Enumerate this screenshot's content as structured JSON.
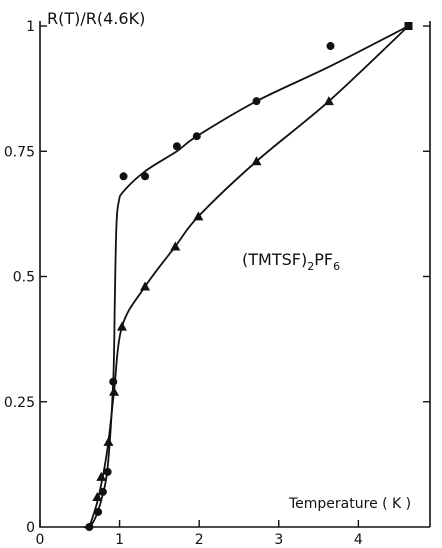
{
  "chart_data": {
    "type": "scatter",
    "title": "",
    "ylabel": "R(T)/R(4.6K)",
    "xlabel": "Temperature ( K )",
    "annotation": {
      "main": "(TMTSF)",
      "sub1": "2",
      "mid": "PF",
      "sub2": "6"
    },
    "xlim": [
      0,
      4.9
    ],
    "ylim": [
      0,
      1.01
    ],
    "x_ticks": [
      0,
      1,
      2,
      3,
      4
    ],
    "x_tick_labels": [
      "0",
      "1",
      "2",
      "3",
      "4"
    ],
    "y_ticks": [
      0,
      0.25,
      0.5,
      0.75,
      1
    ],
    "y_tick_labels": [
      "0",
      "0.25",
      "0.5",
      "0.75",
      "1"
    ],
    "grid": false,
    "legend": "none",
    "series": [
      {
        "marker": "circle",
        "points": [
          [
            0.62,
            0.0
          ],
          [
            0.73,
            0.03
          ],
          [
            0.79,
            0.07
          ],
          [
            0.85,
            0.11
          ],
          [
            0.92,
            0.29
          ],
          [
            1.05,
            0.7
          ],
          [
            1.32,
            0.7
          ],
          [
            1.72,
            0.76
          ],
          [
            1.97,
            0.78
          ],
          [
            2.72,
            0.85
          ],
          [
            3.65,
            0.96
          ],
          [
            4.63,
            1.0
          ]
        ],
        "curve": [
          [
            0.55,
            0.0
          ],
          [
            0.62,
            0.0
          ],
          [
            0.7,
            0.02
          ],
          [
            0.78,
            0.06
          ],
          [
            0.85,
            0.12
          ],
          [
            0.92,
            0.29
          ],
          [
            0.94,
            0.45
          ],
          [
            0.96,
            0.6
          ],
          [
            0.99,
            0.65
          ],
          [
            1.05,
            0.67
          ],
          [
            1.32,
            0.71
          ],
          [
            1.72,
            0.75
          ],
          [
            1.97,
            0.78
          ],
          [
            2.72,
            0.85
          ],
          [
            3.65,
            0.92
          ],
          [
            4.63,
            1.0
          ]
        ]
      },
      {
        "marker": "triangle",
        "points": [
          [
            0.72,
            0.06
          ],
          [
            0.77,
            0.1
          ],
          [
            0.86,
            0.17
          ],
          [
            0.93,
            0.27
          ],
          [
            1.03,
            0.4
          ],
          [
            1.32,
            0.48
          ],
          [
            1.7,
            0.56
          ],
          [
            1.99,
            0.62
          ],
          [
            2.72,
            0.73
          ],
          [
            3.63,
            0.85
          ],
          [
            4.63,
            1.0
          ]
        ],
        "curve": [
          [
            0.62,
            0.0
          ],
          [
            0.72,
            0.05
          ],
          [
            0.8,
            0.11
          ],
          [
            0.86,
            0.17
          ],
          [
            0.93,
            0.27
          ],
          [
            1.03,
            0.4
          ],
          [
            1.32,
            0.48
          ],
          [
            1.7,
            0.56
          ],
          [
            1.99,
            0.62
          ],
          [
            2.72,
            0.73
          ],
          [
            3.63,
            0.85
          ],
          [
            4.63,
            1.0
          ]
        ]
      }
    ]
  }
}
